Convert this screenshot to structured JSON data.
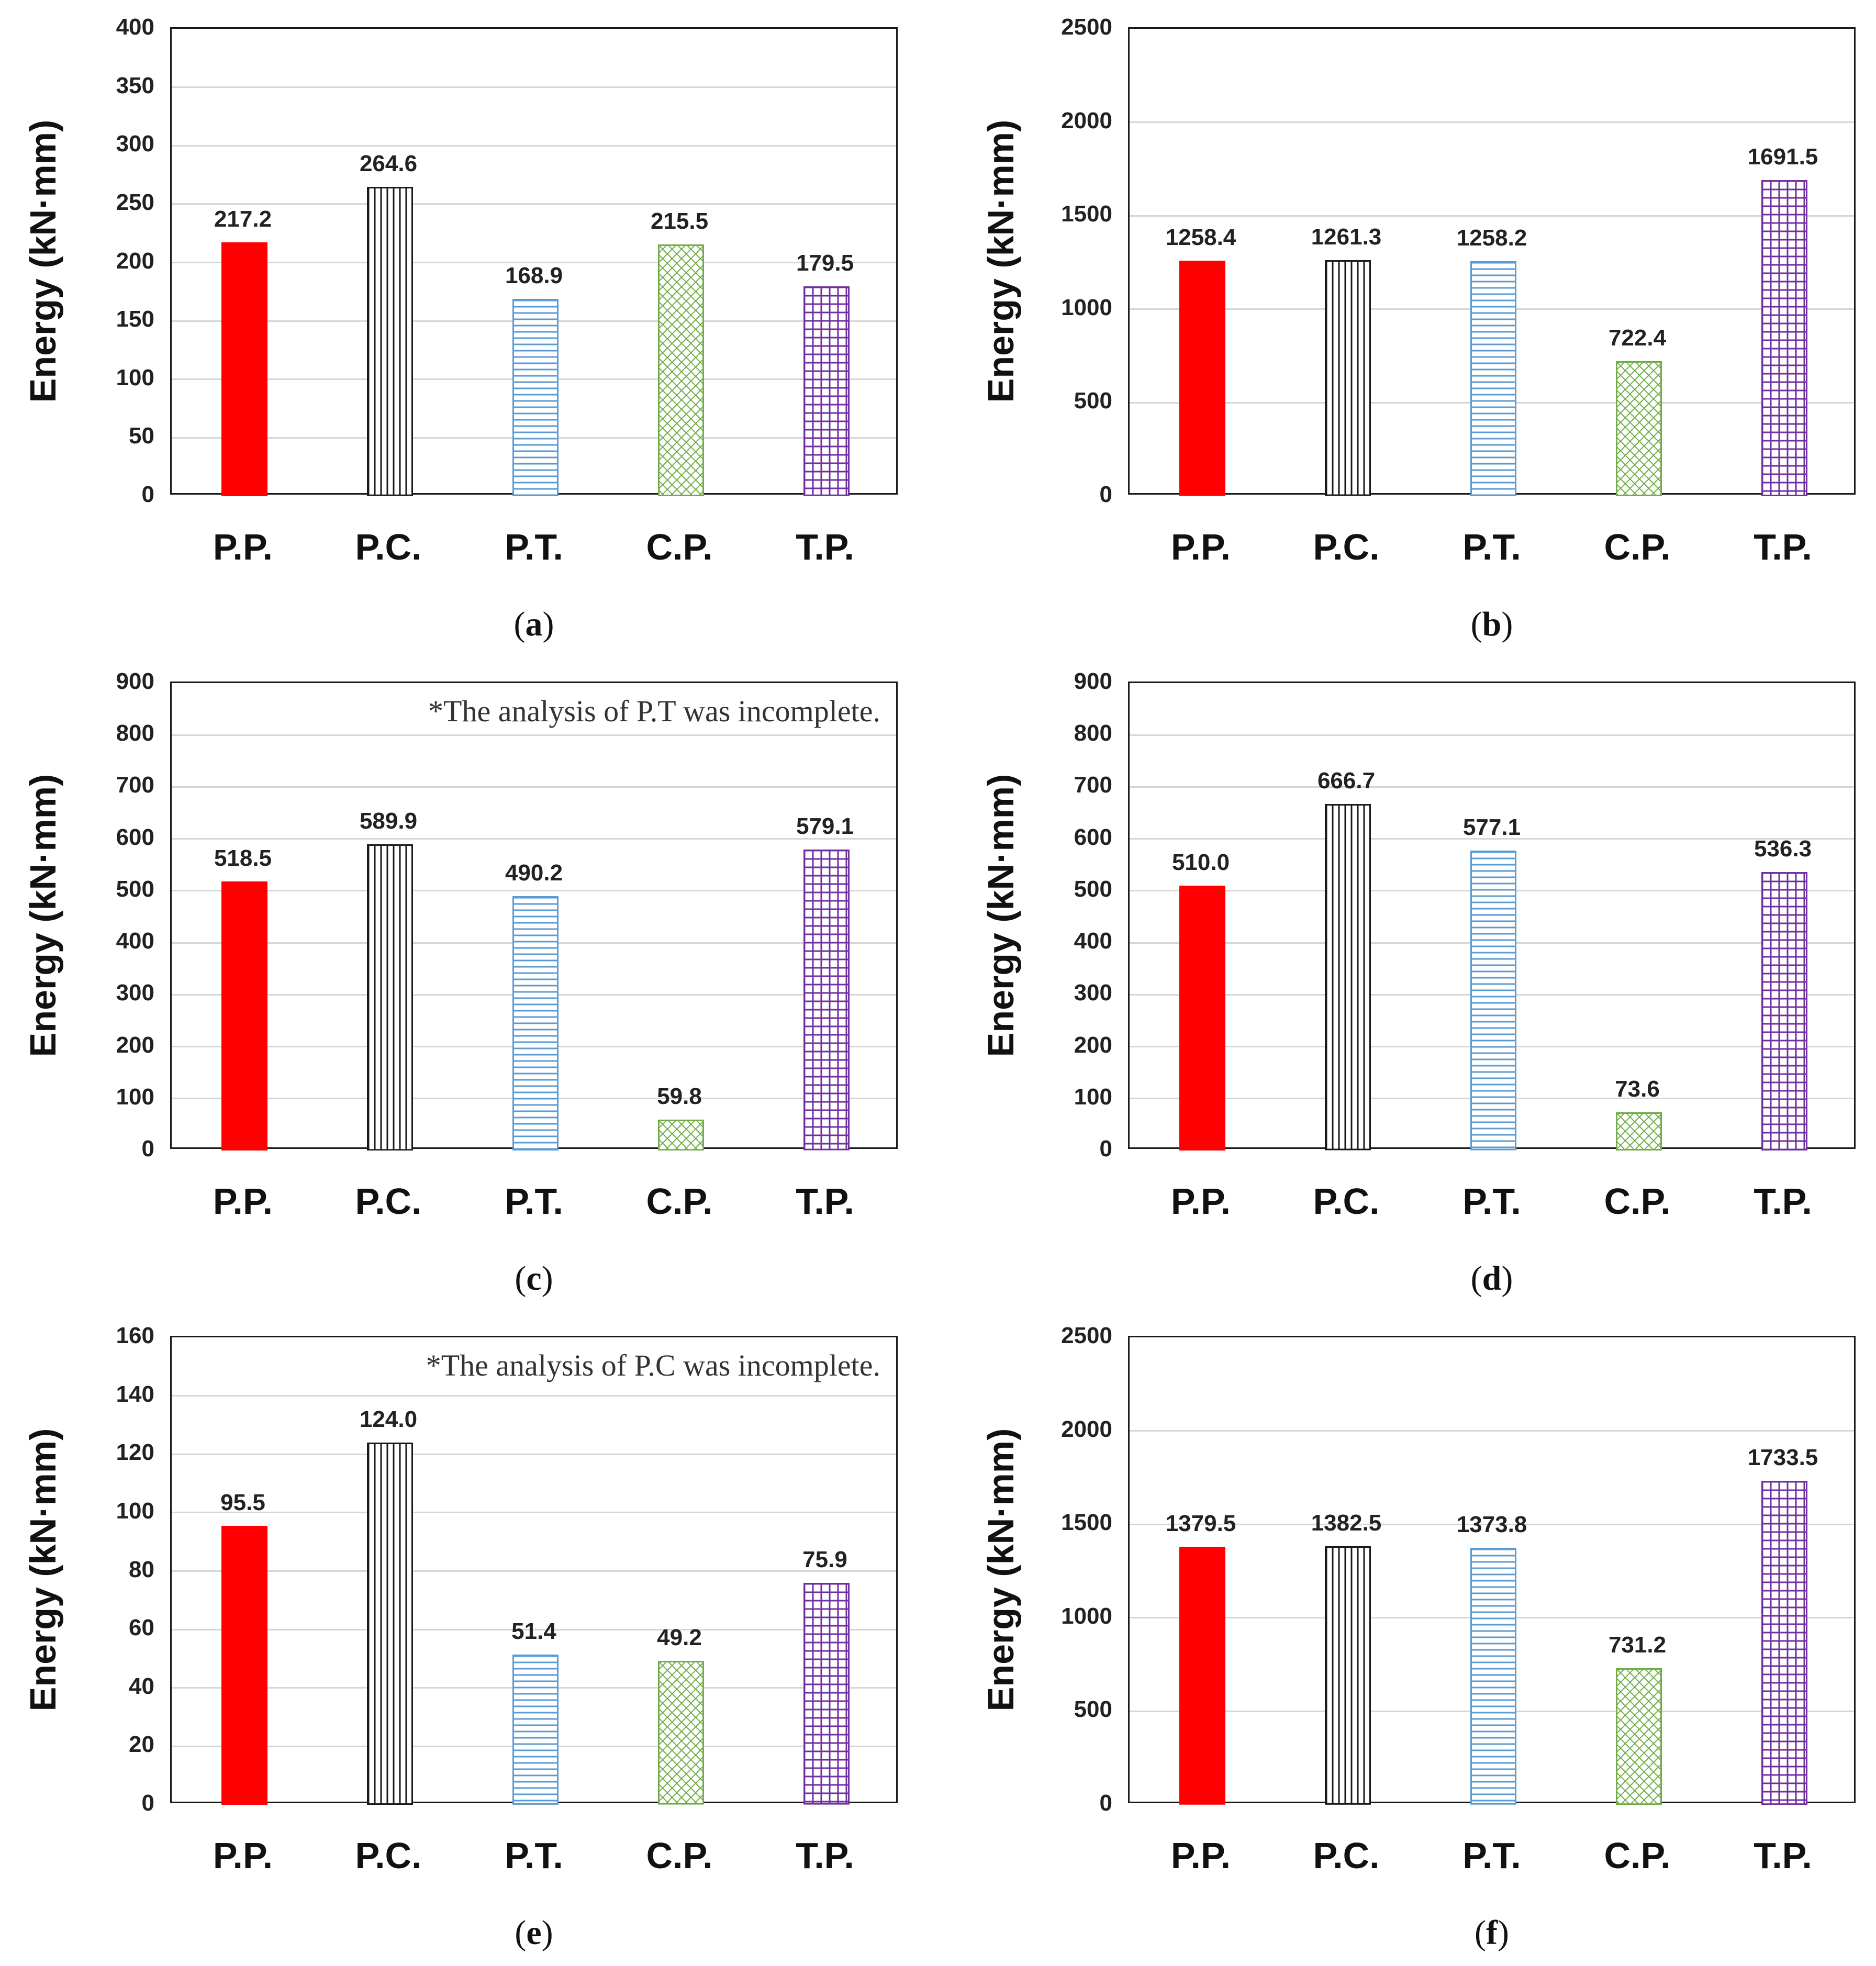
{
  "chart_data": [
    {
      "type": "bar",
      "panel_label": "a",
      "ylabel": "Energy (kN·mm)",
      "ylim": [
        0,
        400
      ],
      "ytick_step": 50,
      "categories": [
        "P.P.",
        "P.C.",
        "P.T.",
        "C.P.",
        "T.P."
      ],
      "values": [
        217.2,
        264.6,
        168.9,
        215.5,
        179.5
      ],
      "value_labels": [
        "217.2",
        "264.6",
        "168.9",
        "215.5",
        "179.5"
      ],
      "annotation": ""
    },
    {
      "type": "bar",
      "panel_label": "b",
      "ylabel": "Energy (kN·mm)",
      "ylim": [
        0,
        2500
      ],
      "ytick_step": 500,
      "categories": [
        "P.P.",
        "P.C.",
        "P.T.",
        "C.P.",
        "T.P."
      ],
      "values": [
        1258.4,
        1261.3,
        1258.2,
        722.4,
        1691.5
      ],
      "value_labels": [
        "1258.4",
        "1261.3",
        "1258.2",
        "722.4",
        "1691.5"
      ],
      "annotation": ""
    },
    {
      "type": "bar",
      "panel_label": "c",
      "ylabel": "Energy (kN·mm)",
      "ylim": [
        0,
        900
      ],
      "ytick_step": 100,
      "categories": [
        "P.P.",
        "P.C.",
        "P.T.",
        "C.P.",
        "T.P."
      ],
      "values": [
        518.5,
        589.9,
        490.2,
        59.8,
        579.1
      ],
      "value_labels": [
        "518.5",
        "589.9",
        "490.2",
        "59.8",
        "579.1"
      ],
      "annotation": "*The analysis of P.T was incomplete."
    },
    {
      "type": "bar",
      "panel_label": "d",
      "ylabel": "Energy (kN·mm)",
      "ylim": [
        0,
        900
      ],
      "ytick_step": 100,
      "categories": [
        "P.P.",
        "P.C.",
        "P.T.",
        "C.P.",
        "T.P."
      ],
      "values": [
        510.0,
        666.7,
        577.1,
        73.6,
        536.3
      ],
      "value_labels": [
        "510.0",
        "666.7",
        "577.1",
        "73.6",
        "536.3"
      ],
      "annotation": ""
    },
    {
      "type": "bar",
      "panel_label": "e",
      "ylabel": "Energy (kN·mm)",
      "ylim": [
        0,
        160
      ],
      "ytick_step": 20,
      "categories": [
        "P.P.",
        "P.C.",
        "P.T.",
        "C.P.",
        "T.P."
      ],
      "values": [
        95.5,
        124.0,
        51.4,
        49.2,
        75.9
      ],
      "value_labels": [
        "95.5",
        "124.0",
        "51.4",
        "49.2",
        "75.9"
      ],
      "annotation": "*The analysis of P.C was incomplete."
    },
    {
      "type": "bar",
      "panel_label": "f",
      "ylabel": "Energy (kN·mm)",
      "ylim": [
        0,
        2500
      ],
      "ytick_step": 500,
      "categories": [
        "P.P.",
        "P.C.",
        "P.T.",
        "C.P.",
        "T.P."
      ],
      "values": [
        1379.5,
        1382.5,
        1373.8,
        731.2,
        1733.5
      ],
      "value_labels": [
        "1379.5",
        "1382.5",
        "1373.8",
        "731.2",
        "1733.5"
      ],
      "annotation": ""
    }
  ],
  "series_style": {
    "P.P.": {
      "pattern": "solid",
      "color": "#ff0000"
    },
    "P.C.": {
      "pattern": "vertical-lines",
      "color": "#1a1a1a"
    },
    "P.T.": {
      "pattern": "horizontal-lines",
      "color": "#5b9bd5"
    },
    "C.P.": {
      "pattern": "diagonal-cross",
      "color": "#70ad47"
    },
    "T.P.": {
      "pattern": "grid",
      "color": "#7030a0"
    }
  },
  "grid_color": "#d6d6d6"
}
